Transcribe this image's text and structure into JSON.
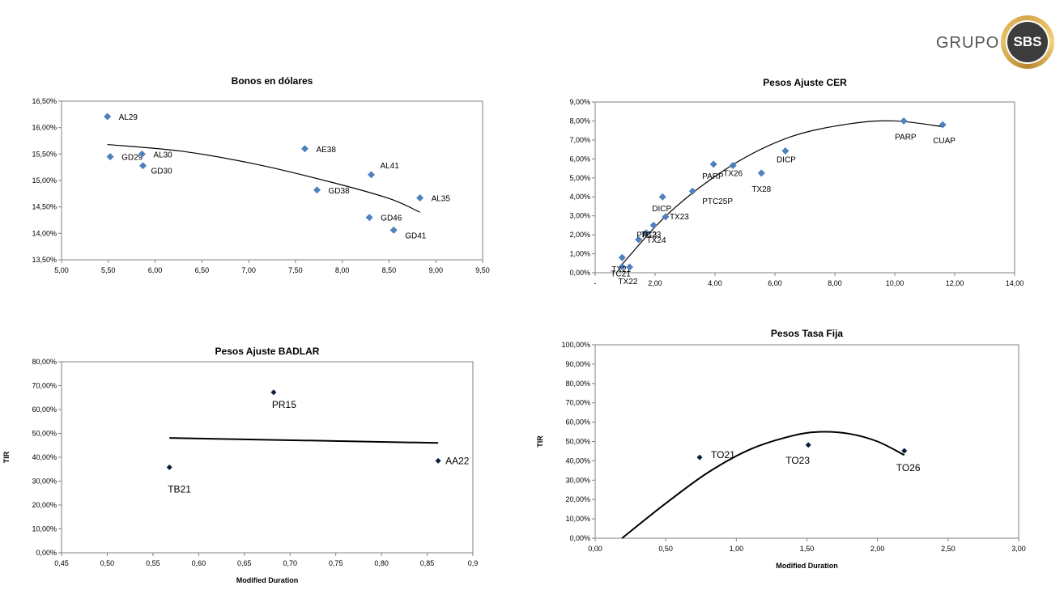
{
  "brand": {
    "group_text": "GRUPO",
    "mark_text": "SBS"
  },
  "chart_data": [
    {
      "type": "scatter",
      "title": "Bonos en dólares",
      "xlabel": "",
      "ylabel": "",
      "xlim": [
        5,
        9.5
      ],
      "ylim": [
        13.5,
        16.5
      ],
      "x_ticks": [
        "5,00",
        "5,50",
        "6,00",
        "6,50",
        "7,00",
        "7,50",
        "8,00",
        "8,50",
        "9,00",
        "9,50"
      ],
      "y_ticks": [
        "13,50%",
        "14,00%",
        "14,50%",
        "15,00%",
        "15,50%",
        "16,00%",
        "16,50%"
      ],
      "marker_color": "#4f81bd",
      "points": [
        {
          "label": "AL29",
          "x": 5.49,
          "y": 16.21
        },
        {
          "label": "GD29",
          "x": 5.52,
          "y": 15.45
        },
        {
          "label": "AL30",
          "x": 5.86,
          "y": 15.5
        },
        {
          "label": "GD30",
          "x": 5.87,
          "y": 15.28
        },
        {
          "label": "AE38",
          "x": 7.6,
          "y": 15.6
        },
        {
          "label": "GD38",
          "x": 7.73,
          "y": 14.82
        },
        {
          "label": "AL41",
          "x": 8.31,
          "y": 15.11
        },
        {
          "label": "GD46",
          "x": 8.29,
          "y": 14.3
        },
        {
          "label": "GD41",
          "x": 8.55,
          "y": 14.06
        },
        {
          "label": "AL35",
          "x": 8.83,
          "y": 14.67
        }
      ],
      "trendline": [
        [
          5.49,
          15.68
        ],
        [
          6.3,
          15.55
        ],
        [
          7.1,
          15.3
        ],
        [
          7.9,
          14.96
        ],
        [
          8.5,
          14.66
        ],
        [
          8.83,
          14.4
        ]
      ]
    },
    {
      "type": "scatter",
      "title": "Pesos Ajuste CER",
      "xlabel": "",
      "ylabel": "",
      "xlim": [
        0,
        14
      ],
      "ylim": [
        0,
        9
      ],
      "x_ticks": [
        "-",
        "2,00",
        "4,00",
        "6,00",
        "8,00",
        "10,00",
        "12,00",
        "14,00"
      ],
      "y_ticks": [
        "0,00%",
        "1,00%",
        "2,00%",
        "3,00%",
        "4,00%",
        "5,00%",
        "6,00%",
        "7,00%",
        "8,00%",
        "9,00%"
      ],
      "marker_color": "#4f81bd",
      "points": [
        {
          "label": "TC21",
          "x": 0.9,
          "y": 0.32
        },
        {
          "label": "TX21",
          "x": 0.9,
          "y": 0.8
        },
        {
          "label": "TX22",
          "x": 1.15,
          "y": 0.3
        },
        {
          "label": "TX24",
          "x": 1.45,
          "y": 1.75
        },
        {
          "label": "TC23",
          "x": 1.7,
          "y": 2.1
        },
        {
          "label": "PR13",
          "x": 1.95,
          "y": 2.5
        },
        {
          "label": "TX23",
          "x": 2.35,
          "y": 2.95
        },
        {
          "label": "DICP",
          "x": 2.25,
          "y": 4.0
        },
        {
          "label": "PTC25P",
          "x": 3.25,
          "y": 4.3
        },
        {
          "label": "PARP",
          "x": 3.95,
          "y": 5.72
        },
        {
          "label": "TX26",
          "x": 4.6,
          "y": 5.65
        },
        {
          "label": "TX28",
          "x": 5.55,
          "y": 5.25
        },
        {
          "label": "DICP",
          "x": 6.35,
          "y": 6.42
        },
        {
          "label": "PARP",
          "x": 10.3,
          "y": 8.0
        },
        {
          "label": "CUAP",
          "x": 11.6,
          "y": 7.8
        }
      ],
      "trendline": [
        [
          0.9,
          0.45
        ],
        [
          2.5,
          3.2
        ],
        [
          4.5,
          5.6
        ],
        [
          6.5,
          7.15
        ],
        [
          8.5,
          7.85
        ],
        [
          10,
          8.0
        ],
        [
          11.6,
          7.7
        ]
      ]
    },
    {
      "type": "scatter",
      "title": "Pesos Ajuste BADLAR",
      "xlabel": "Modified Duration",
      "ylabel": "TIR",
      "xlim": [
        0.45,
        0.9
      ],
      "ylim": [
        0,
        80
      ],
      "x_ticks": [
        "0,45",
        "0,50",
        "0,55",
        "0,60",
        "0,65",
        "0,70",
        "0,75",
        "0,80",
        "0,85",
        "0,9"
      ],
      "y_ticks": [
        "0,00%",
        "10,00%",
        "20,00%",
        "30,00%",
        "40,00%",
        "50,00%",
        "60,00%",
        "70,00%",
        "80,00%"
      ],
      "marker_color": "#0b1d3f",
      "points": [
        {
          "label": "TB21",
          "x": 0.568,
          "y": 35.8
        },
        {
          "label": "PR15",
          "x": 0.682,
          "y": 67.2
        },
        {
          "label": "AA22",
          "x": 0.862,
          "y": 38.5
        }
      ],
      "trendline": [
        [
          0.568,
          48.1
        ],
        [
          0.862,
          46.0
        ]
      ]
    },
    {
      "type": "scatter",
      "title": "Pesos Tasa Fija",
      "xlabel": "Modified Duration",
      "ylabel": "TIR",
      "xlim": [
        0,
        3
      ],
      "ylim": [
        0,
        100
      ],
      "x_ticks": [
        "0,00",
        "0,50",
        "1,00",
        "1,50",
        "2,00",
        "2,50",
        "3,00"
      ],
      "y_ticks": [
        "0,00%",
        "10,00%",
        "20,00%",
        "30,00%",
        "40,00%",
        "50,00%",
        "60,00%",
        "70,00%",
        "80,00%",
        "90,00%",
        "100,00%"
      ],
      "marker_color": "#0b1d3f",
      "points": [
        {
          "label": "TO21",
          "x": 0.74,
          "y": 41.8
        },
        {
          "label": "TO23",
          "x": 1.51,
          "y": 48.2
        },
        {
          "label": "TO26",
          "x": 2.19,
          "y": 45.2
        }
      ],
      "trendline": [
        [
          0.19,
          0
        ],
        [
          0.5,
          18
        ],
        [
          0.8,
          34
        ],
        [
          1.1,
          46
        ],
        [
          1.4,
          53
        ],
        [
          1.6,
          55
        ],
        [
          1.8,
          54
        ],
        [
          2.0,
          50
        ],
        [
          2.19,
          43
        ]
      ]
    }
  ]
}
